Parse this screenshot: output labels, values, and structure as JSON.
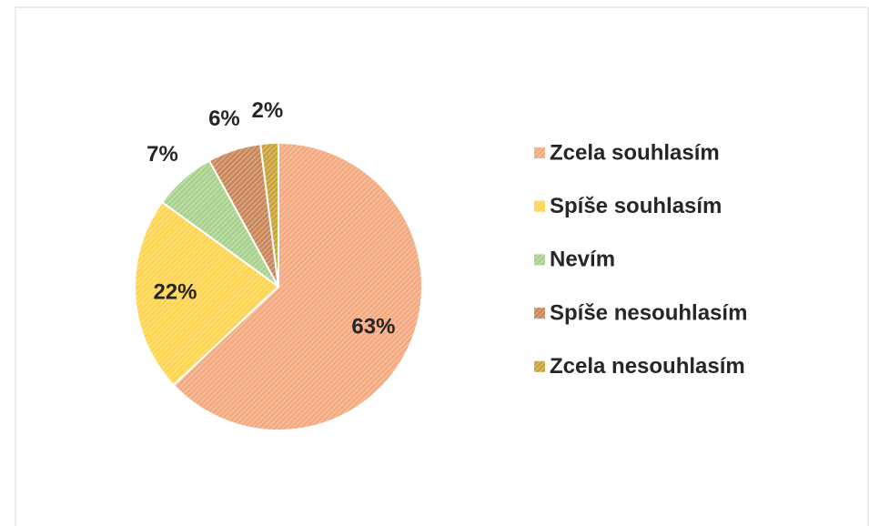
{
  "chart_data": {
    "type": "pie",
    "categories": [
      "Zcela souhlasím",
      "Spíše souhlasím",
      "Nevím",
      "Spíše nesouhlasím",
      "Zcela nesouhlasím"
    ],
    "values": [
      63,
      22,
      7,
      6,
      2
    ],
    "value_labels": [
      "63%",
      "22%",
      "7%",
      "6%",
      "2%"
    ],
    "colors": [
      "#f4a97f",
      "#ffd54f",
      "#a9d18e",
      "#c9875a",
      "#c9a23a"
    ],
    "legend": "right"
  }
}
